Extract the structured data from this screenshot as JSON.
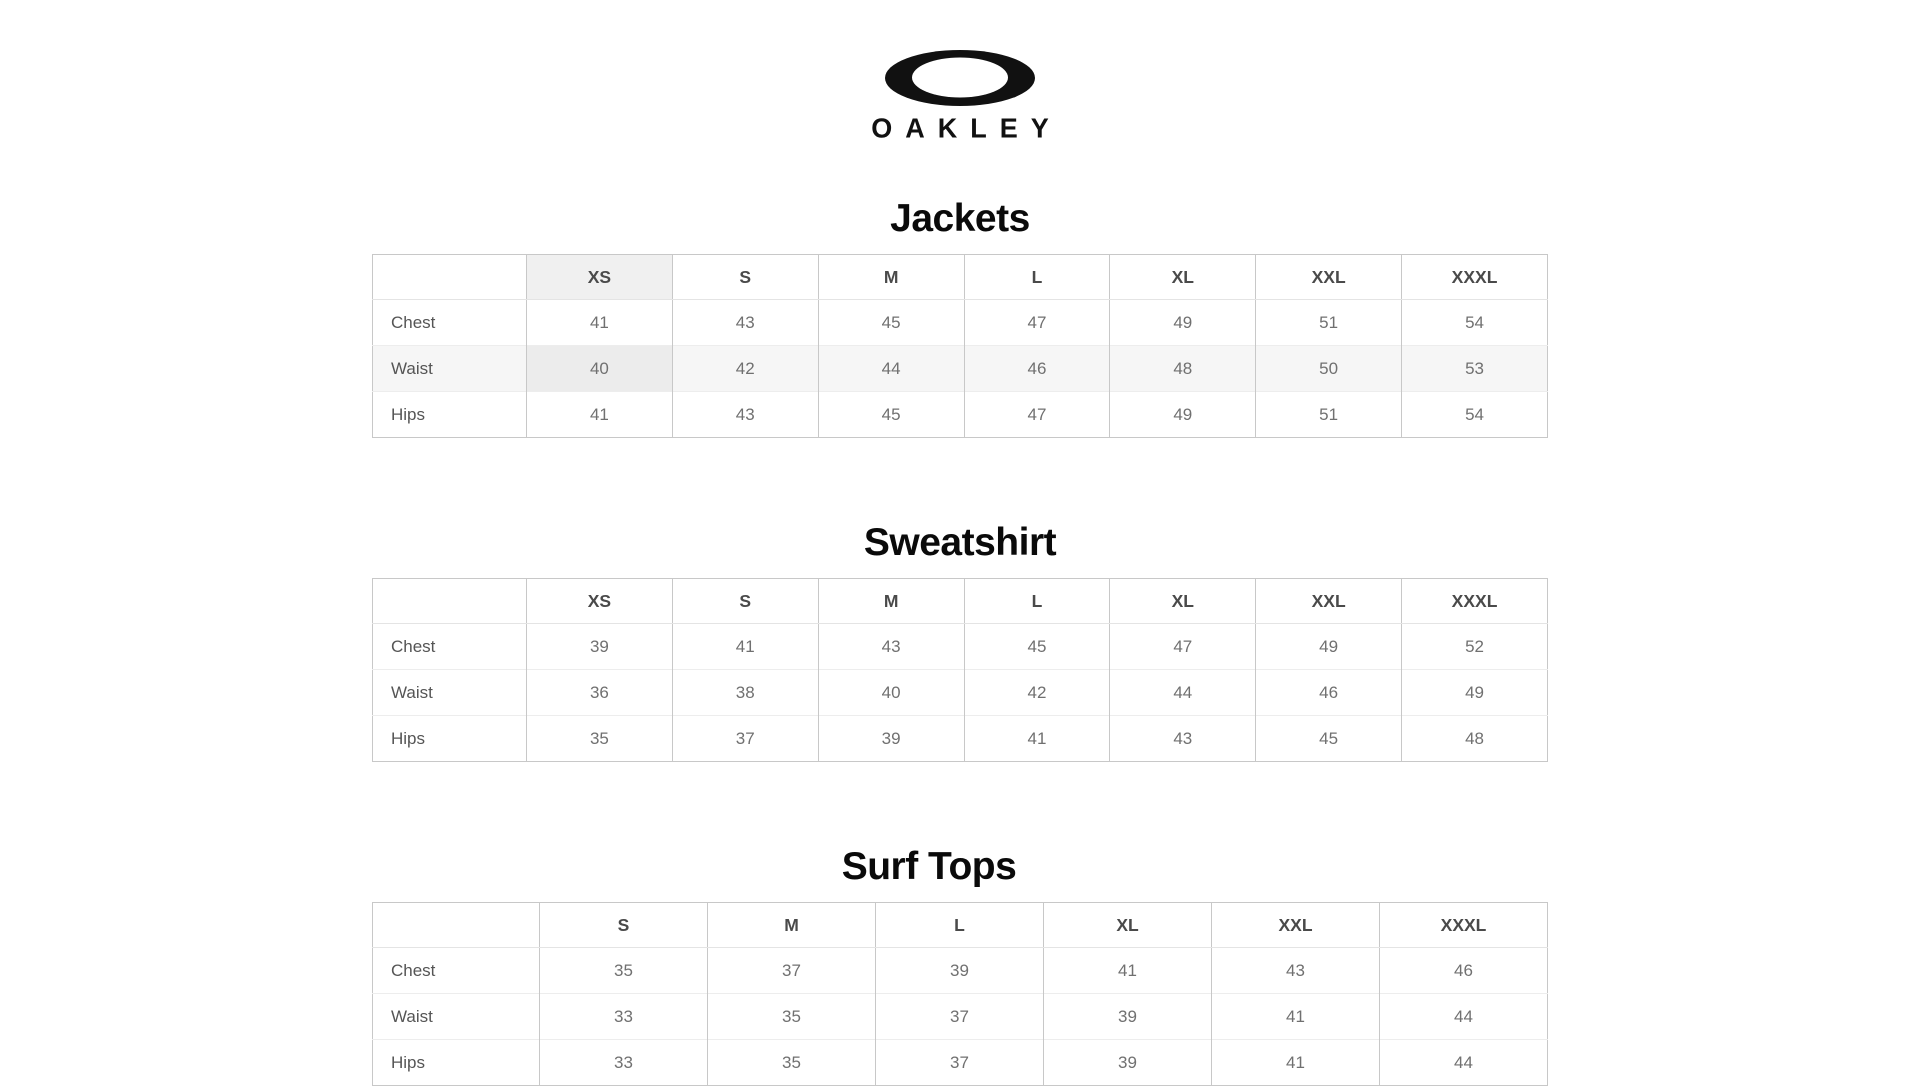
{
  "logo": {
    "brand": "Oakley",
    "icon": "oakley-ellipse-icon",
    "wordmark": "OAKLEY"
  },
  "colors": {
    "brand": "#111111",
    "border": "#c8c8c8",
    "highlight_bg": "#f0f0f0",
    "stripe_bg": "#f6f6f6",
    "highlight_stripe_bg": "#ececec"
  },
  "tables": [
    {
      "title": "Jackets",
      "columns": [
        "",
        "XS",
        "S",
        "M",
        "L",
        "XL",
        "XXL",
        "XXXL"
      ],
      "highlight_column": "XS",
      "rows": [
        {
          "label": "Chest",
          "values": [
            41,
            43,
            45,
            47,
            49,
            51,
            54
          ]
        },
        {
          "label": "Waist",
          "values": [
            40,
            42,
            44,
            46,
            48,
            50,
            53
          ],
          "striped": true
        },
        {
          "label": "Hips",
          "values": [
            41,
            43,
            45,
            47,
            49,
            51,
            54
          ]
        }
      ]
    },
    {
      "title": "Sweatshirt",
      "columns": [
        "",
        "XS",
        "S",
        "M",
        "L",
        "XL",
        "XXL",
        "XXXL"
      ],
      "rows": [
        {
          "label": "Chest",
          "values": [
            39,
            41,
            43,
            45,
            47,
            49,
            52
          ]
        },
        {
          "label": "Waist",
          "values": [
            36,
            38,
            40,
            42,
            44,
            46,
            49
          ]
        },
        {
          "label": "Hips",
          "values": [
            35,
            37,
            39,
            41,
            43,
            45,
            48
          ]
        }
      ]
    },
    {
      "title": "Surf Tops",
      "columns": [
        "",
        "S",
        "M",
        "L",
        "XL",
        "XXL",
        "XXXL"
      ],
      "rows": [
        {
          "label": "Chest",
          "values": [
            35,
            37,
            39,
            41,
            43,
            46
          ]
        },
        {
          "label": "Waist",
          "values": [
            33,
            35,
            37,
            39,
            41,
            44
          ]
        },
        {
          "label": "Hips",
          "values": [
            33,
            35,
            37,
            39,
            41,
            44
          ]
        }
      ]
    }
  ]
}
